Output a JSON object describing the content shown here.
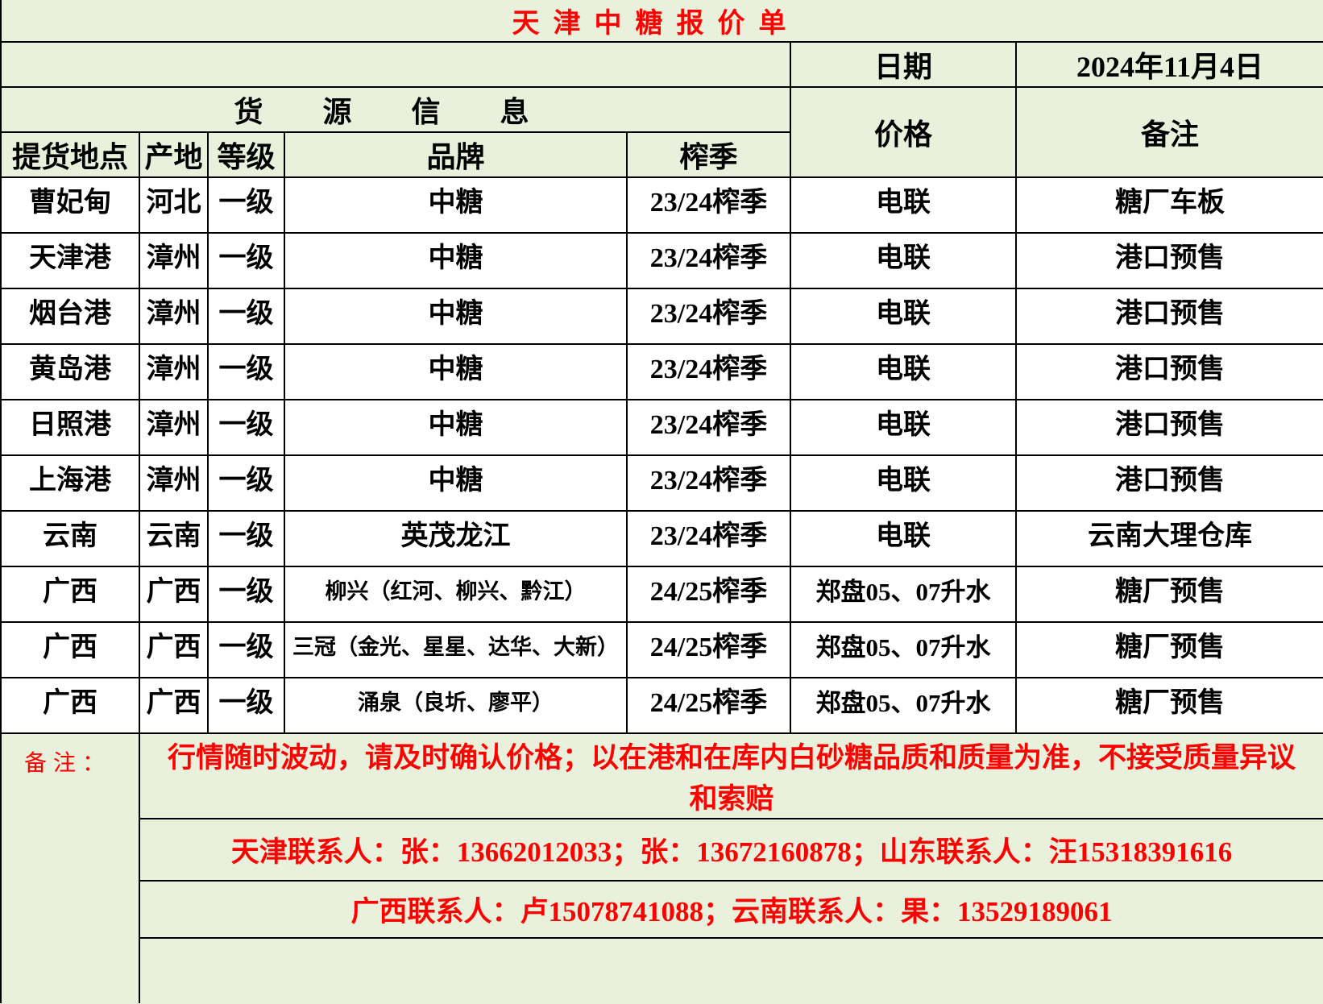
{
  "title": "天津中糖报价单",
  "header": {
    "date_label": "日期",
    "date_value": "2024年11月4日",
    "info_header": "货源信息",
    "price_header": "价格",
    "remark_header": "备注"
  },
  "columns": [
    "提货地点",
    "产地",
    "等级",
    "品牌",
    "榨季"
  ],
  "rows": [
    {
      "location": "曹妃甸",
      "origin": "河北",
      "grade": "一级",
      "brand": "中糖",
      "season": "23/24榨季",
      "price": "电联",
      "remark": "糖厂车板"
    },
    {
      "location": "天津港",
      "origin": "漳州",
      "grade": "一级",
      "brand": "中糖",
      "season": "23/24榨季",
      "price": "电联",
      "remark": "港口预售"
    },
    {
      "location": "烟台港",
      "origin": "漳州",
      "grade": "一级",
      "brand": "中糖",
      "season": "23/24榨季",
      "price": "电联",
      "remark": "港口预售"
    },
    {
      "location": "黄岛港",
      "origin": "漳州",
      "grade": "一级",
      "brand": "中糖",
      "season": "23/24榨季",
      "price": "电联",
      "remark": "港口预售"
    },
    {
      "location": "日照港",
      "origin": "漳州",
      "grade": "一级",
      "brand": "中糖",
      "season": "23/24榨季",
      "price": "电联",
      "remark": "港口预售"
    },
    {
      "location": "上海港",
      "origin": "漳州",
      "grade": "一级",
      "brand": "中糖",
      "season": "23/24榨季",
      "price": "电联",
      "remark": "港口预售"
    },
    {
      "location": "云南",
      "origin": "云南",
      "grade": "一级",
      "brand": "英茂龙江",
      "season": "23/24榨季",
      "price": "电联",
      "remark": "云南大理仓库"
    },
    {
      "location": "广西",
      "origin": "广西",
      "grade": "一级",
      "brand": "柳兴（红河、柳兴、黔江）",
      "season": "24/25榨季",
      "price": "郑盘05、07升水",
      "remark": "糖厂预售"
    },
    {
      "location": "广西",
      "origin": "广西",
      "grade": "一级",
      "brand": "三冠（金光、星星、达华、大新）",
      "season": "24/25榨季",
      "price": "郑盘05、07升水",
      "remark": "糖厂预售"
    },
    {
      "location": "广西",
      "origin": "广西",
      "grade": "一级",
      "brand": "涌泉（良圻、廖平）",
      "season": "24/25榨季",
      "price": "郑盘05、07升水",
      "remark": "糖厂预售"
    }
  ],
  "footer": {
    "label": "备注：",
    "note_lines": [
      "行情随时波动，请及时确认价格；以在港和在库内白砂糖品质和质量为准，不接受质量异议",
      "和索赔"
    ],
    "contacts_line1": "天津联系人：张：13662012033；张：13672160878；山东联系人：汪15318391616",
    "contacts_line2": "广西联系人：卢15078741088；云南联系人：果：13529189061"
  },
  "colors": {
    "background_green": "#E9F0DB",
    "data_row_white": "#FFFFFF",
    "accent_red": "#FF0000",
    "text_black": "#000000",
    "border_black": "#000000"
  }
}
